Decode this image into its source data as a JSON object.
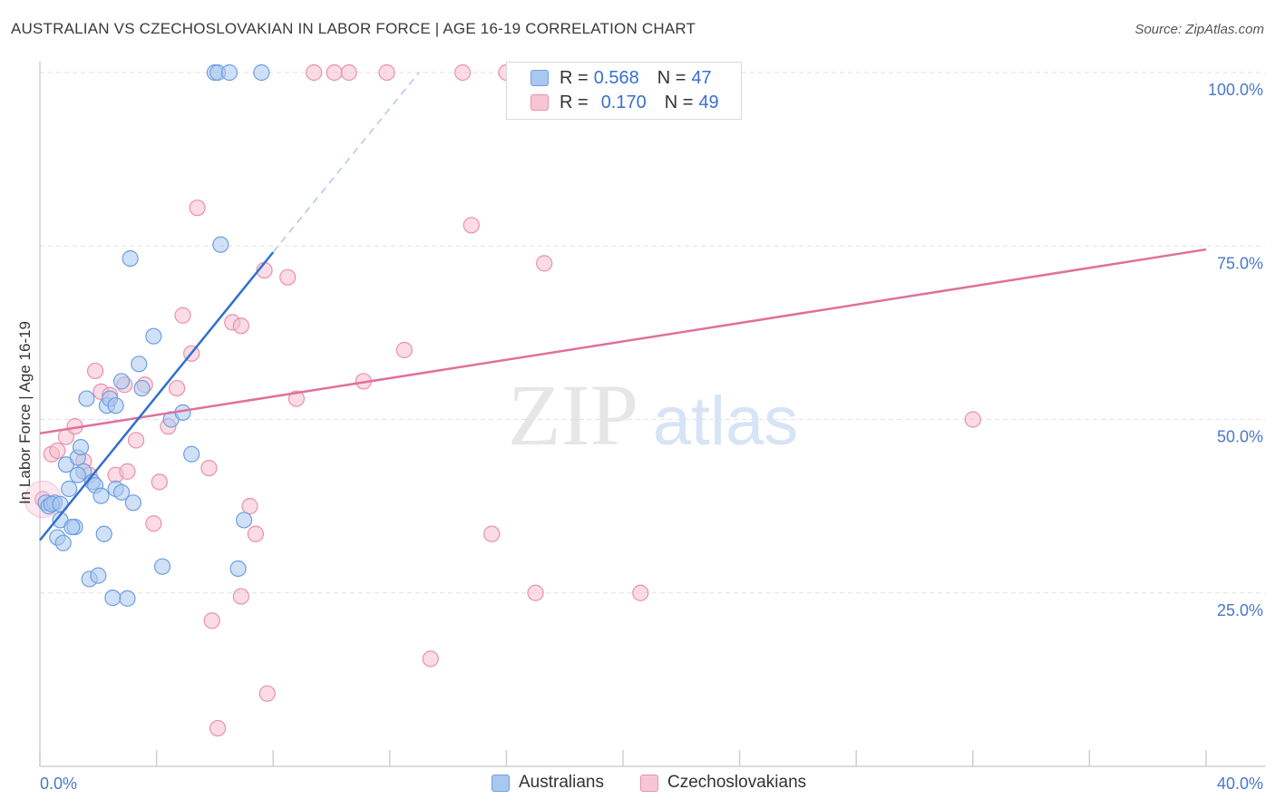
{
  "title": "AUSTRALIAN VS CZECHOSLOVAKIAN IN LABOR FORCE | AGE 16-19 CORRELATION CHART",
  "source": "Source: ZipAtlas.com",
  "watermark": {
    "zip": "ZIP",
    "atlas": "atlas"
  },
  "colors": {
    "australians_fill": "#a9c8f0",
    "australians_stroke": "#6d9ee0",
    "australians_line": "#2f6fd0",
    "czech_fill": "#f7bfd0",
    "czech_stroke": "#ea8fac",
    "czech_line": "#e0709a",
    "axis_label": "#4a78c8",
    "grid": "#e0e0e0"
  },
  "legend": {
    "rows": [
      {
        "r_label": "R =",
        "r_value": "0.568",
        "n_label": "N =",
        "n_value": "47"
      },
      {
        "r_label": "R =",
        "r_value": "0.170",
        "n_label": "N =",
        "n_value": "49"
      }
    ]
  },
  "bottom_legend": {
    "australians": "Australians",
    "czechoslovakians": "Czechoslovakians"
  },
  "chart_data": {
    "type": "scatter",
    "title": "AUSTRALIAN VS CZECHOSLOVAKIAN IN LABOR FORCE | AGE 16-19 CORRELATION CHART",
    "xlabel": "",
    "ylabel": "In Labor Force | Age 16-19",
    "xlim": [
      0,
      40
    ],
    "ylim": [
      0,
      105
    ],
    "x_tick_labels": [
      "0.0%",
      "40.0%"
    ],
    "y_ticks": [
      25,
      50,
      75,
      100
    ],
    "y_tick_labels": [
      "25.0%",
      "50.0%",
      "75.0%",
      "100.0%"
    ],
    "grid": true,
    "series": [
      {
        "name": "Australians",
        "r": 0.568,
        "n": 47,
        "trend": {
          "x0": 0,
          "y0": 32.6,
          "x1": 8.0,
          "y1": 74.1,
          "dash_x1": 13.0,
          "dash_y1": 100.0
        },
        "points": [
          [
            0.2,
            38.0
          ],
          [
            0.3,
            37.5
          ],
          [
            0.5,
            38.0
          ],
          [
            0.4,
            37.8
          ],
          [
            0.7,
            35.5
          ],
          [
            0.6,
            33.0
          ],
          [
            0.8,
            32.2
          ],
          [
            1.0,
            40.0
          ],
          [
            1.2,
            34.5
          ],
          [
            0.9,
            43.5
          ],
          [
            1.3,
            44.5
          ],
          [
            1.4,
            46.0
          ],
          [
            1.5,
            42.5
          ],
          [
            1.6,
            53.0
          ],
          [
            1.8,
            41.0
          ],
          [
            1.9,
            40.5
          ],
          [
            1.7,
            27.0
          ],
          [
            2.0,
            27.5
          ],
          [
            2.1,
            39.0
          ],
          [
            2.2,
            33.5
          ],
          [
            2.3,
            52.0
          ],
          [
            2.4,
            53.0
          ],
          [
            2.5,
            24.3
          ],
          [
            2.6,
            52.0
          ],
          [
            2.6,
            40.0
          ],
          [
            2.8,
            39.5
          ],
          [
            2.8,
            55.5
          ],
          [
            3.1,
            73.2
          ],
          [
            3.0,
            24.2
          ],
          [
            3.2,
            38.0
          ],
          [
            3.4,
            58.0
          ],
          [
            3.5,
            54.5
          ],
          [
            3.9,
            62.0
          ],
          [
            4.2,
            28.8
          ],
          [
            4.5,
            50.0
          ],
          [
            4.9,
            51.0
          ],
          [
            5.2,
            45.0
          ],
          [
            6.0,
            100.0
          ],
          [
            6.1,
            100.0
          ],
          [
            6.2,
            75.2
          ],
          [
            6.5,
            100.0
          ],
          [
            6.8,
            28.5
          ],
          [
            7.0,
            35.5
          ],
          [
            7.6,
            100.0
          ],
          [
            1.1,
            34.5
          ],
          [
            0.7,
            37.8
          ],
          [
            1.3,
            42.0
          ]
        ]
      },
      {
        "name": "Czechoslovakians",
        "r": 0.17,
        "n": 49,
        "trend": {
          "x0": 0,
          "y0": 48.0,
          "x1": 40,
          "y1": 74.5
        },
        "points": [
          [
            0.1,
            38.5
          ],
          [
            0.4,
            45.0
          ],
          [
            0.6,
            45.5
          ],
          [
            0.9,
            47.5
          ],
          [
            1.2,
            49.0
          ],
          [
            1.5,
            44.0
          ],
          [
            1.7,
            42.0
          ],
          [
            1.9,
            57.0
          ],
          [
            2.1,
            54.0
          ],
          [
            2.4,
            53.5
          ],
          [
            2.6,
            42.0
          ],
          [
            2.9,
            55.0
          ],
          [
            3.0,
            42.5
          ],
          [
            3.3,
            47.0
          ],
          [
            3.6,
            55.0
          ],
          [
            3.9,
            35.0
          ],
          [
            4.1,
            41.0
          ],
          [
            4.4,
            49.0
          ],
          [
            4.7,
            54.5
          ],
          [
            4.9,
            65.0
          ],
          [
            5.2,
            59.5
          ],
          [
            5.4,
            80.5
          ],
          [
            5.8,
            43.0
          ],
          [
            5.9,
            21.0
          ],
          [
            6.1,
            5.5
          ],
          [
            6.6,
            64.0
          ],
          [
            6.9,
            63.5
          ],
          [
            6.9,
            24.5
          ],
          [
            7.2,
            37.5
          ],
          [
            7.4,
            33.5
          ],
          [
            7.7,
            71.5
          ],
          [
            7.8,
            10.5
          ],
          [
            8.5,
            70.5
          ],
          [
            8.8,
            53.0
          ],
          [
            9.4,
            100.0
          ],
          [
            10.1,
            100.0
          ],
          [
            10.6,
            100.0
          ],
          [
            11.1,
            55.5
          ],
          [
            11.9,
            100.0
          ],
          [
            12.5,
            60.0
          ],
          [
            13.4,
            15.5
          ],
          [
            14.5,
            100.0
          ],
          [
            14.8,
            78.0
          ],
          [
            15.5,
            33.5
          ],
          [
            16.0,
            100.0
          ],
          [
            17.0,
            25.0
          ],
          [
            17.3,
            72.5
          ],
          [
            20.6,
            25.0
          ],
          [
            32.0,
            50.0
          ]
        ]
      }
    ]
  }
}
